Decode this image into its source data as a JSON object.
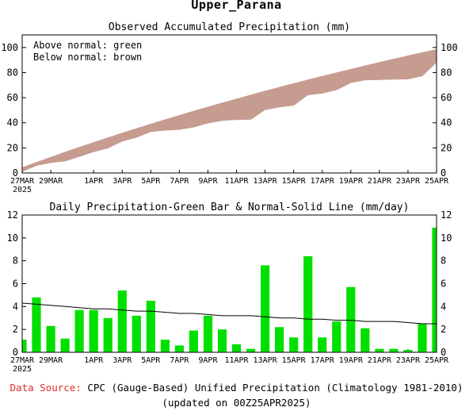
{
  "title": "Upper_Parana",
  "footer": {
    "source_label": "Data Source:",
    "source_text": "CPC (Gauge-Based) Unified Precipitation (Climatology 1981-2010)",
    "updated": "(updated on 00Z25APR2025)"
  },
  "colors": {
    "above_normal": "#7ee07e",
    "below_normal": "#c69c90",
    "daily_bar": "#00e000",
    "normal_line": "#000000",
    "source_label": "#e0302c"
  },
  "chart_data": [
    {
      "type": "area",
      "title": "Observed Accumulated Precipitation (mm)",
      "legend": [
        "Above normal: green",
        "Below normal: brown"
      ],
      "legend_position": "top-left",
      "x": [
        "27MAR",
        "28MAR",
        "29MAR",
        "30MAR",
        "31MAR",
        "1APR",
        "2APR",
        "3APR",
        "4APR",
        "5APR",
        "6APR",
        "7APR",
        "8APR",
        "9APR",
        "10APR",
        "11APR",
        "12APR",
        "13APR",
        "14APR",
        "15APR",
        "16APR",
        "17APR",
        "18APR",
        "19APR",
        "20APR",
        "21APR",
        "22APR",
        "23APR",
        "24APR",
        "25APR"
      ],
      "x_tick_labels": [
        "27MAR",
        "29MAR",
        "1APR",
        "3APR",
        "5APR",
        "7APR",
        "9APR",
        "11APR",
        "13APR",
        "15APR",
        "17APR",
        "19APR",
        "21APR",
        "23APR",
        "25APR"
      ],
      "x_year_label": "2025",
      "series": [
        {
          "name": "Observed",
          "values": [
            1.1,
            5.9,
            8.2,
            9.4,
            13.1,
            16.8,
            19.8,
            25.2,
            28.4,
            32.9,
            34.0,
            34.6,
            36.5,
            39.7,
            41.7,
            42.4,
            42.7,
            50.3,
            52.5,
            53.8,
            62.2,
            63.5,
            66.2,
            71.9,
            74.0,
            74.3,
            74.6,
            74.8,
            77.3,
            88.2
          ]
        },
        {
          "name": "Normal",
          "values": [
            4.3,
            8.5,
            12.6,
            16.6,
            20.5,
            24.3,
            28.1,
            31.8,
            35.4,
            39.0,
            42.5,
            45.9,
            49.3,
            52.6,
            55.8,
            59.0,
            62.2,
            65.3,
            68.3,
            71.3,
            74.2,
            77.1,
            79.9,
            82.7,
            85.4,
            88.1,
            90.8,
            93.4,
            95.9,
            98.4
          ]
        }
      ],
      "ylim": [
        0,
        110
      ],
      "yticks": [
        0,
        20,
        40,
        60,
        80,
        100
      ],
      "grid": false
    },
    {
      "type": "bar",
      "title": "Daily Precipitation-Green Bar & Normal-Solid Line (mm/day)",
      "x": [
        "27MAR",
        "28MAR",
        "29MAR",
        "30MAR",
        "31MAR",
        "1APR",
        "2APR",
        "3APR",
        "4APR",
        "5APR",
        "6APR",
        "7APR",
        "8APR",
        "9APR",
        "10APR",
        "11APR",
        "12APR",
        "13APR",
        "14APR",
        "15APR",
        "16APR",
        "17APR",
        "18APR",
        "19APR",
        "20APR",
        "21APR",
        "22APR",
        "23APR",
        "24APR",
        "25APR"
      ],
      "x_tick_labels": [
        "27MAR",
        "29MAR",
        "1APR",
        "3APR",
        "5APR",
        "7APR",
        "9APR",
        "11APR",
        "13APR",
        "15APR",
        "17APR",
        "19APR",
        "21APR",
        "23APR",
        "25APR"
      ],
      "x_year_label": "2025",
      "series": [
        {
          "name": "Daily",
          "values": [
            1.1,
            4.8,
            2.3,
            1.2,
            3.7,
            3.7,
            3.0,
            5.4,
            3.2,
            4.5,
            1.1,
            0.6,
            1.9,
            3.2,
            2.0,
            0.7,
            0.3,
            7.6,
            2.2,
            1.3,
            8.4,
            1.3,
            2.7,
            5.7,
            2.1,
            0.3,
            0.3,
            0.2,
            2.5,
            10.9
          ]
        },
        {
          "name": "Normal",
          "type": "line",
          "values": [
            4.3,
            4.2,
            4.1,
            4.0,
            3.9,
            3.8,
            3.8,
            3.7,
            3.6,
            3.6,
            3.5,
            3.4,
            3.4,
            3.3,
            3.2,
            3.2,
            3.2,
            3.1,
            3.0,
            3.0,
            2.9,
            2.9,
            2.8,
            2.8,
            2.7,
            2.7,
            2.7,
            2.6,
            2.5,
            2.5
          ]
        }
      ],
      "ylim": [
        0,
        12
      ],
      "yticks": [
        0,
        2,
        4,
        6,
        8,
        10,
        12
      ],
      "grid": false
    }
  ]
}
